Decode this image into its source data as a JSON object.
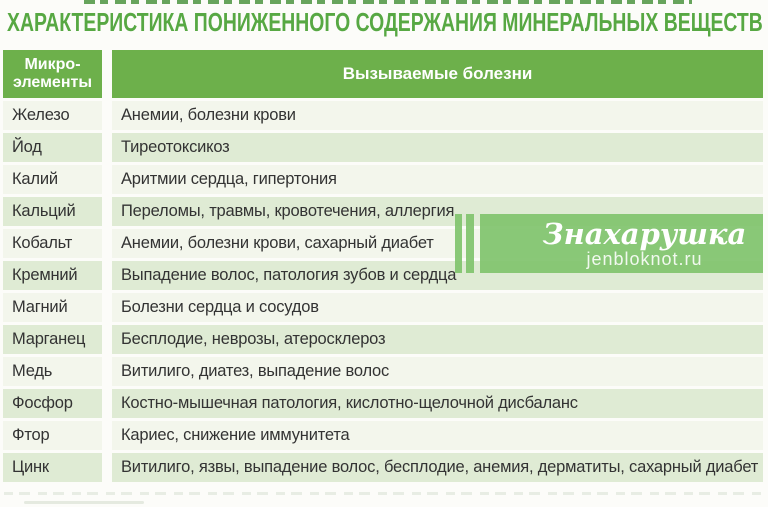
{
  "page": {
    "title": "ХАРАКТЕРИСТИКА ПОНИЖЕННОГО СОДЕРЖАНИЯ МИНЕРАЛЬНЫХ ВЕЩЕСТВ"
  },
  "table": {
    "headers": {
      "col1": "Микро-элементы",
      "col2": "Вызываемые болезни"
    },
    "rows": [
      {
        "element": "Железо",
        "diseases": "Анемии, болезни крови"
      },
      {
        "element": "Йод",
        "diseases": "Тиреотоксикоз"
      },
      {
        "element": "Калий",
        "diseases": "Аритмии сердца, гипертония"
      },
      {
        "element": "Кальций",
        "diseases": "Переломы, травмы, кровотечения, аллергия"
      },
      {
        "element": "Кобальт",
        "diseases": "Анемии, болезни крови, сахарный диабет"
      },
      {
        "element": "Кремний",
        "diseases": "Выпадение волос, патология зубов и сердца"
      },
      {
        "element": "Магний",
        "diseases": "Болезни сердца и сосудов"
      },
      {
        "element": "Марганец",
        "diseases": "Бесплодие, неврозы, атеросклероз"
      },
      {
        "element": "Медь",
        "diseases": "Витилиго, диатез, выпадение волос"
      },
      {
        "element": "Фосфор",
        "diseases": "Костно-мышечная патология, кислотно-щелочной дисбаланс"
      },
      {
        "element": "Фтор",
        "diseases": "Кариес, снижение иммунитета"
      },
      {
        "element": "Цинк",
        "diseases": "Витилиго, язвы, выпадение волос, бесплодие, анемия, дерматиты, сахарный диабет"
      }
    ]
  },
  "watermark": {
    "brand": "Знахарушка",
    "site": "jenbloknot.ru"
  },
  "colors": {
    "title-green": "#57a843",
    "header-green": "#6db04b",
    "row-cream": "#f3f6ec",
    "row-green": "#dfebd4",
    "wm-green": "rgba(128,195,108,0.92)",
    "text-dark": "#333333"
  },
  "chart_data": {
    "type": "table",
    "title": "ХАРАКТЕРИСТИКА ПОНИЖЕННОГО СОДЕРЖАНИЯ МИНЕРАЛЬНЫХ ВЕЩЕСТВ",
    "columns": [
      "Микро-элементы",
      "Вызываемые болезни"
    ],
    "rows": [
      [
        "Железо",
        "Анемии, болезни крови"
      ],
      [
        "Йод",
        "Тиреотоксикоз"
      ],
      [
        "Калий",
        "Аритмии сердца, гипертония"
      ],
      [
        "Кальций",
        "Переломы, травмы, кровотечения, аллергия"
      ],
      [
        "Кобальт",
        "Анемии, болезни крови, сахарный диабет"
      ],
      [
        "Кремний",
        "Выпадение волос, патология зубов и сердца"
      ],
      [
        "Магний",
        "Болезни сердца и сосудов"
      ],
      [
        "Марганец",
        "Бесплодие, неврозы, атеросклероз"
      ],
      [
        "Медь",
        "Витилиго, диатез, выпадение волос"
      ],
      [
        "Фосфор",
        "Костно-мышечная патология, кислотно-щелочной дисбаланс"
      ],
      [
        "Фтор",
        "Кариес, снижение иммунитета"
      ],
      [
        "Цинк",
        "Витилиго, язвы, выпадение волос, бесплодие, анемия, дерматиты, сахарный диабет"
      ]
    ],
    "layout": {
      "zebra_striping": true,
      "header_background": "#6db04b"
    }
  }
}
